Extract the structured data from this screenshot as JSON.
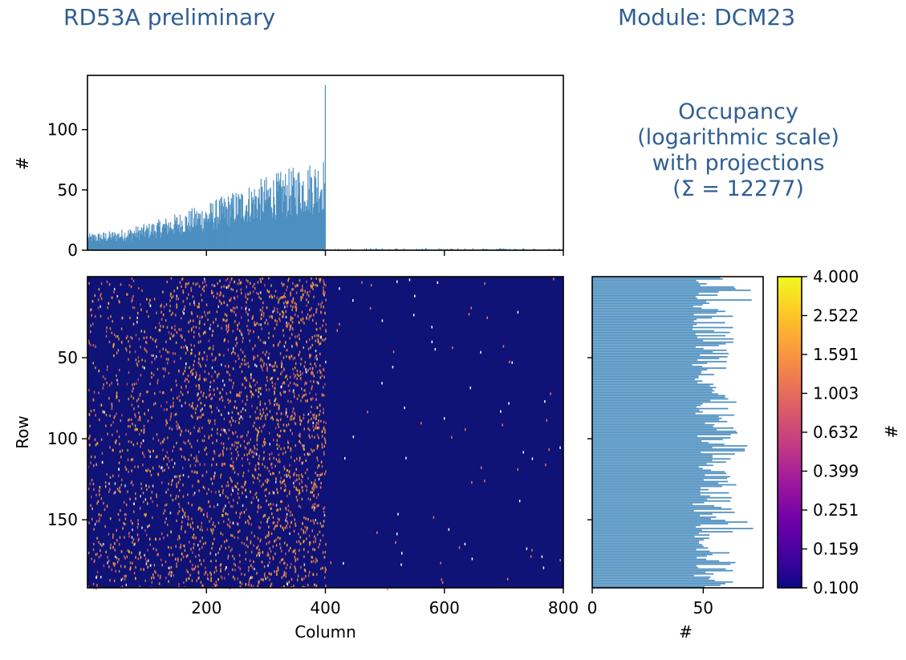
{
  "header": {
    "left_label": "RD53A preliminary",
    "right_label": "Module: DCM23"
  },
  "occupancy_title": {
    "lines": [
      "Occupancy",
      "(logarithmic scale)",
      "with projections",
      "(Σ = 12277)"
    ]
  },
  "chart_data": [
    {
      "type": "bar",
      "name": "column-projection",
      "xlim": [
        0,
        800
      ],
      "ylim": [
        0,
        145
      ],
      "ylabel": "#",
      "yticks": [
        0,
        50,
        100
      ],
      "xticks": [
        200,
        400,
        600,
        800
      ],
      "color": "#4d8fc0",
      "profile_knots_x": [
        0,
        50,
        100,
        150,
        200,
        250,
        300,
        350,
        400
      ],
      "profile_knots_y": [
        10,
        12,
        16,
        22,
        28,
        36,
        44,
        50,
        56
      ],
      "peak": {
        "x": 400,
        "y": 137
      },
      "right_half_level": 1
    },
    {
      "type": "heatmap",
      "name": "occupancy-map",
      "xlabel": "Column",
      "ylabel": "Row",
      "xlim": [
        0,
        800
      ],
      "ylim": [
        192,
        0
      ],
      "xticks": [
        200,
        400,
        600,
        800
      ],
      "yticks": [
        50,
        100,
        150
      ],
      "scale": "log",
      "active_columns": [
        0,
        400
      ],
      "colormap": "plasma",
      "background_color": "#0f1277"
    },
    {
      "type": "bar",
      "orientation": "horizontal",
      "name": "row-projection",
      "xlabel": "#",
      "xlim": [
        0,
        77
      ],
      "ylim": [
        192,
        0
      ],
      "xticks": [
        0,
        50
      ],
      "color": "#4d8fc0",
      "typical_range": [
        45,
        65
      ]
    },
    {
      "type": "colorbar",
      "label": "#",
      "ticks": [
        "4.000",
        "2.522",
        "1.591",
        "1.003",
        "0.632",
        "0.399",
        "0.251",
        "0.159",
        "0.100"
      ],
      "colors": [
        "#0d0887",
        "#46039f",
        "#7201a8",
        "#9c179e",
        "#bd3786",
        "#d8576b",
        "#ed7953",
        "#fb9f3a",
        "#fdca26",
        "#f0f921"
      ]
    }
  ]
}
